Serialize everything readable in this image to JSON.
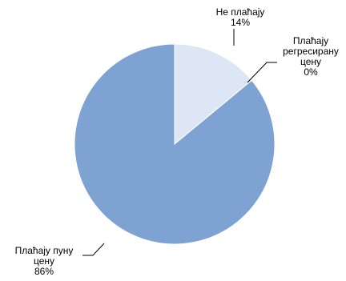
{
  "chart_data": {
    "type": "pie",
    "slices": [
      {
        "label_lines": [
          "Не плаћају",
          "14%"
        ],
        "value": 14,
        "percent_label": "14%",
        "color": "#DCE6F5"
      },
      {
        "label_lines": [
          "Плаћају",
          "регресирану",
          "цену",
          "0%"
        ],
        "value": 0,
        "percent_label": "0%",
        "color": "#A9C0E0"
      },
      {
        "label_lines": [
          "Плаћају пуну",
          "цену",
          "86%"
        ],
        "value": 86,
        "percent_label": "86%",
        "color": "#7EA3D3"
      }
    ],
    "start_angle": "12 o'clock",
    "direction": "clockwise",
    "legend": "none",
    "title": ""
  }
}
